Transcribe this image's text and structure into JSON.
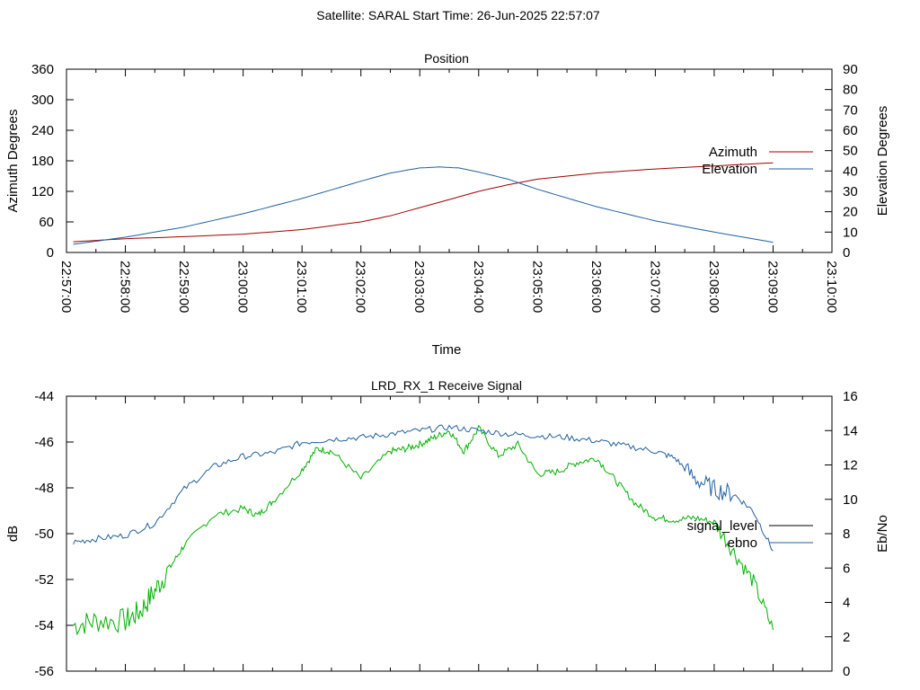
{
  "header": {
    "title": "Satellite: SARAL    Start Time: 26-Jun-2025 22:57:07"
  },
  "chart_data": [
    {
      "type": "line",
      "title": "Position",
      "xlabel": "Time",
      "ylabel": "Azimuth Degrees",
      "y2label": "Elevation Degrees",
      "ylim": [
        0,
        360
      ],
      "y2lim": [
        0,
        90
      ],
      "xlim": [
        "22:57:00",
        "23:10:00"
      ],
      "y_ticks": [
        "0",
        "60",
        "120",
        "180",
        "240",
        "300",
        "360"
      ],
      "y2_ticks": [
        "0",
        "10",
        "20",
        "30",
        "40",
        "50",
        "60",
        "70",
        "80",
        "90"
      ],
      "x_ticks": [
        "22:57:00",
        "22:58:00",
        "22:59:00",
        "23:00:00",
        "23:01:00",
        "23:02:00",
        "23:03:00",
        "23:04:00",
        "23:05:00",
        "23:06:00",
        "23:07:00",
        "23:08:00",
        "23:09:00",
        "23:10:00"
      ],
      "legend_position": "right",
      "series": [
        {
          "name": "Azimuth",
          "axis": "left",
          "color": "#a00000",
          "x": [
            "22:57:07",
            "22:58:00",
            "22:59:00",
            "23:00:00",
            "23:01:00",
            "23:02:00",
            "23:02:30",
            "23:03:00",
            "23:03:30",
            "23:04:00",
            "23:04:30",
            "23:05:00",
            "23:06:00",
            "23:07:00",
            "23:08:00",
            "23:09:00"
          ],
          "y": [
            21,
            27,
            31,
            36,
            45,
            60,
            72,
            88,
            104,
            120,
            133,
            144,
            156,
            164,
            170,
            176
          ]
        },
        {
          "name": "Elevation",
          "axis": "right",
          "color": "#2060a0",
          "x": [
            "22:57:07",
            "22:58:00",
            "22:59:00",
            "23:00:00",
            "23:01:00",
            "23:02:00",
            "23:02:30",
            "23:03:00",
            "23:03:20",
            "23:03:40",
            "23:04:00",
            "23:04:30",
            "23:05:00",
            "23:06:00",
            "23:07:00",
            "23:08:00",
            "23:09:00"
          ],
          "y": [
            4,
            7.5,
            12.5,
            19,
            26.5,
            35,
            39,
            41.5,
            42,
            41.5,
            39.5,
            36,
            31,
            22.5,
            15.5,
            10,
            5
          ]
        }
      ]
    },
    {
      "type": "line",
      "title": "LRD_RX_1 Receive Signal",
      "ylabel": "dB",
      "y2label": "Eb/No",
      "ylim": [
        -56,
        -44
      ],
      "y2lim": [
        0,
        16
      ],
      "xlim": [
        "22:57:00",
        "23:10:00"
      ],
      "y_ticks": [
        "-56",
        "-54",
        "-52",
        "-50",
        "-48",
        "-46",
        "-44"
      ],
      "y2_ticks": [
        "0",
        "2",
        "4",
        "6",
        "8",
        "10",
        "12",
        "14",
        "16"
      ],
      "legend_position": "right",
      "series": [
        {
          "name": "signal_level",
          "axis": "left",
          "color": "#00b000",
          "x": [
            "22:57:07",
            "22:57:30",
            "22:58:00",
            "22:58:15",
            "22:58:30",
            "22:58:45",
            "22:59:00",
            "22:59:30",
            "23:00:00",
            "23:00:15",
            "23:00:30",
            "23:01:00",
            "23:01:15",
            "23:01:30",
            "23:02:00",
            "23:02:30",
            "23:02:45",
            "23:03:00",
            "23:03:15",
            "23:03:30",
            "23:03:45",
            "23:04:00",
            "23:04:20",
            "23:04:40",
            "23:05:00",
            "23:05:20",
            "23:05:40",
            "23:06:00",
            "23:06:20",
            "23:06:40",
            "23:07:00",
            "23:07:20",
            "23:07:40",
            "23:08:00",
            "23:08:20",
            "23:08:40",
            "23:09:00"
          ],
          "y": [
            -54,
            -53.8,
            -53.8,
            -53.4,
            -52.5,
            -51.5,
            -50.5,
            -49.2,
            -48.9,
            -49.2,
            -48.6,
            -47.2,
            -46.3,
            -46.4,
            -47.6,
            -46.4,
            -46.3,
            -46.1,
            -45.8,
            -45.5,
            -46.4,
            -45.4,
            -46.6,
            -46.1,
            -47.4,
            -47.3,
            -46.9,
            -46.7,
            -47.7,
            -48.7,
            -49.3,
            -49.4,
            -49.3,
            -49.5,
            -50.8,
            -52.1,
            -54.2
          ]
        },
        {
          "name": "ebno",
          "axis": "right",
          "color": "#2060a0",
          "x": [
            "22:57:07",
            "22:57:30",
            "22:58:00",
            "22:58:30",
            "22:59:00",
            "22:59:30",
            "23:00:00",
            "23:00:30",
            "23:01:00",
            "23:01:30",
            "23:02:00",
            "23:02:30",
            "23:03:00",
            "23:03:30",
            "23:04:00",
            "23:04:30",
            "23:05:00",
            "23:05:30",
            "23:06:00",
            "23:06:30",
            "23:07:00",
            "23:07:20",
            "23:07:40",
            "23:08:00",
            "23:08:20",
            "23:08:40",
            "23:09:00"
          ],
          "y": [
            7.5,
            7.7,
            7.9,
            8.6,
            10.6,
            11.9,
            12.5,
            12.7,
            13.3,
            13.5,
            13.6,
            13.8,
            14.0,
            14.2,
            14.0,
            13.8,
            13.7,
            13.6,
            13.4,
            13.1,
            12.8,
            12.4,
            11.2,
            10.6,
            10.3,
            9.3,
            7.0
          ]
        }
      ]
    }
  ]
}
